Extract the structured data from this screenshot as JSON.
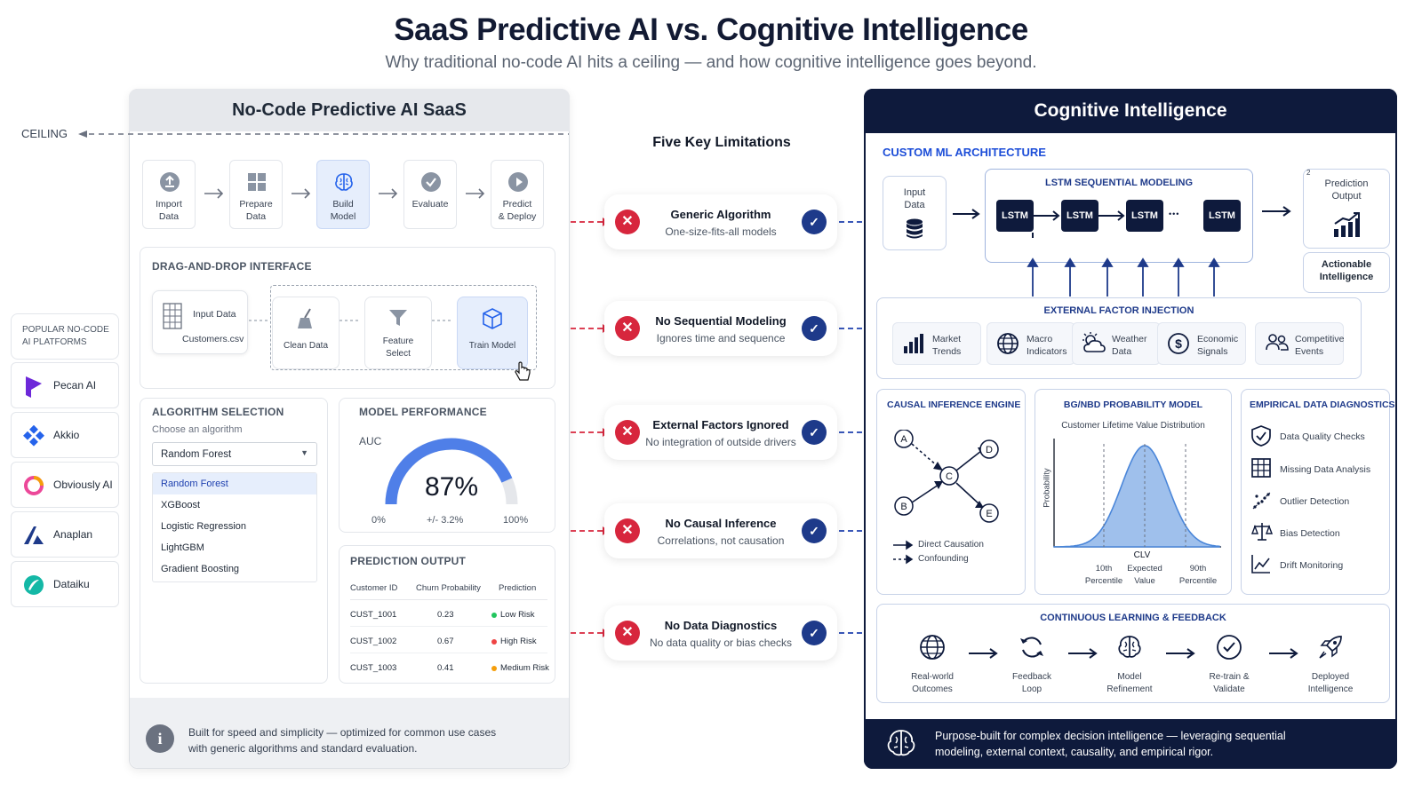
{
  "header": {
    "title": "SaaS Predictive AI vs. Cognitive Intelligence",
    "subtitle": "Why traditional no-code AI hits a ceiling — and how cognitive intelligence goes beyond."
  },
  "left": {
    "title": "No-Code Predictive AI SaaS",
    "ceiling": "CEILING",
    "steps": [
      {
        "label": "Import\nData",
        "icon": "upload-icon"
      },
      {
        "label": "Prepare\nData",
        "icon": "grid-icon"
      },
      {
        "label": "Build\nModel",
        "icon": "brain-icon"
      },
      {
        "label": "Evaluate",
        "icon": "check-icon"
      },
      {
        "label": "Predict\n& Deploy",
        "icon": "play-icon"
      }
    ],
    "dnd": {
      "title": "DRAG-AND-DROP INTERFACE",
      "input_label": "Input Data",
      "input_file": "Customers.csv",
      "nodes": [
        "Clean Data",
        "Feature\nSelect",
        "Train Model"
      ]
    },
    "algorithm": {
      "title": "ALGORITHM SELECTION",
      "prompt": "Choose an algorithm",
      "selected": "Random Forest",
      "options": [
        "Random Forest",
        "XGBoost",
        "Logistic Regression",
        "LightGBM",
        "Gradient Boosting"
      ]
    },
    "performance": {
      "title": "MODEL PERFORMANCE",
      "metric": "AUC",
      "value_text": "87%",
      "value": 0.87,
      "range": "+/- 3.2%",
      "min_label": "0%",
      "max_label": "100%"
    },
    "prediction": {
      "title": "PREDICTION OUTPUT",
      "columns": [
        "Customer ID",
        "Churn Probability",
        "Prediction"
      ],
      "rows": [
        {
          "id": "CUST_1001",
          "prob": "0.23",
          "pred": "Low Risk",
          "color": "#22c55e"
        },
        {
          "id": "CUST_1002",
          "prob": "0.67",
          "pred": "High Risk",
          "color": "#ef4444"
        },
        {
          "id": "CUST_1003",
          "prob": "0.41",
          "pred": "Medium Risk",
          "color": "#f59e0b"
        }
      ]
    },
    "footer": "Built for speed and simplicity — optimized for common use cases\nwith generic algorithms and standard evaluation.",
    "platforms_title": "POPULAR NO-CODE\nAI PLATFORMS",
    "platforms": [
      {
        "name": "Pecan AI",
        "icon": "pecan-logo-icon",
        "color": "#6d28d9"
      },
      {
        "name": "Akkio",
        "icon": "akkio-logo-icon",
        "color": "#2563eb"
      },
      {
        "name": "Obviously AI",
        "icon": "obviously-logo-icon",
        "color": "#ec4899"
      },
      {
        "name": "Anaplan",
        "icon": "anaplan-logo-icon",
        "color": "#1e3a8a"
      },
      {
        "name": "Dataiku",
        "icon": "dataiku-logo-icon",
        "color": "#14b8a6"
      }
    ]
  },
  "center": {
    "title": "Five Key Limitations",
    "items": [
      {
        "title": "Generic Algorithm",
        "desc": "One-size-fits-all models"
      },
      {
        "title": "No Sequential Modeling",
        "desc": "Ignores time and sequence"
      },
      {
        "title": "External Factors Ignored",
        "desc": "No integration of outside drivers"
      },
      {
        "title": "No Causal Inference",
        "desc": "Correlations, not causation"
      },
      {
        "title": "No Data Diagnostics",
        "desc": "No data quality or bias checks"
      }
    ],
    "x_glyph": "✕",
    "check_glyph": "✓"
  },
  "right": {
    "title": "Cognitive Intelligence",
    "arch_title": "CUSTOM ML ARCHITECTURE",
    "input": "Input\nData",
    "lstm_title": "LSTM SEQUENTIAL MODELING",
    "lstm_cells": [
      "LSTM",
      "LSTM",
      "LSTM",
      "LSTM"
    ],
    "ellipsis": "•••",
    "output": "Prediction\nOutput",
    "output_marker": "2",
    "actionable": "Actionable\nIntelligence",
    "external": {
      "title": "EXTERNAL FACTOR INJECTION",
      "items": [
        {
          "label": "Market\nTrends",
          "icon": "bar-chart-icon"
        },
        {
          "label": "Macro\nIndicators",
          "icon": "globe-icon"
        },
        {
          "label": "Weather\nData",
          "icon": "weather-icon"
        },
        {
          "label": "Economic\nSignals",
          "icon": "dollar-icon"
        },
        {
          "label": "Competitive\nEvents",
          "icon": "people-icon"
        }
      ]
    },
    "causal": {
      "title": "CAUSAL INFERENCE ENGINE",
      "nodes": [
        "A",
        "B",
        "C",
        "D",
        "E"
      ],
      "legend_direct": "Direct Causation",
      "legend_confound": "Confounding"
    },
    "bgnbd": {
      "title": "BG/NBD PROBABILITY MODEL",
      "subtitle": "Customer Lifetime Value Distribution",
      "ylabel": "Probability",
      "xlabel": "CLV",
      "markers": [
        "10th\nPercentile",
        "Expected\nValue",
        "90th\nPercentile"
      ]
    },
    "diagnostics": {
      "title": "EMPIRICAL DATA DIAGNOSTICS",
      "items": [
        {
          "label": "Data Quality Checks",
          "icon": "shield-check-icon"
        },
        {
          "label": "Missing Data Analysis",
          "icon": "table-grid-icon"
        },
        {
          "label": "Outlier Detection",
          "icon": "scatter-icon"
        },
        {
          "label": "Bias Detection",
          "icon": "scale-icon"
        },
        {
          "label": "Drift Monitoring",
          "icon": "trend-line-icon"
        }
      ]
    },
    "learning": {
      "title": "CONTINUOUS LEARNING & FEEDBACK",
      "steps": [
        {
          "label": "Real-world\nOutcomes",
          "icon": "globe-icon"
        },
        {
          "label": "Feedback\nLoop",
          "icon": "refresh-icon"
        },
        {
          "label": "Model\nRefinement",
          "icon": "brain-icon"
        },
        {
          "label": "Re-train &\nValidate",
          "icon": "check-circle-icon"
        },
        {
          "label": "Deployed\nIntelligence",
          "icon": "rocket-icon"
        }
      ]
    },
    "footer": "Purpose-built for complex decision intelligence — leveraging sequential\nmodeling, external context, causality, and empirical rigor."
  }
}
